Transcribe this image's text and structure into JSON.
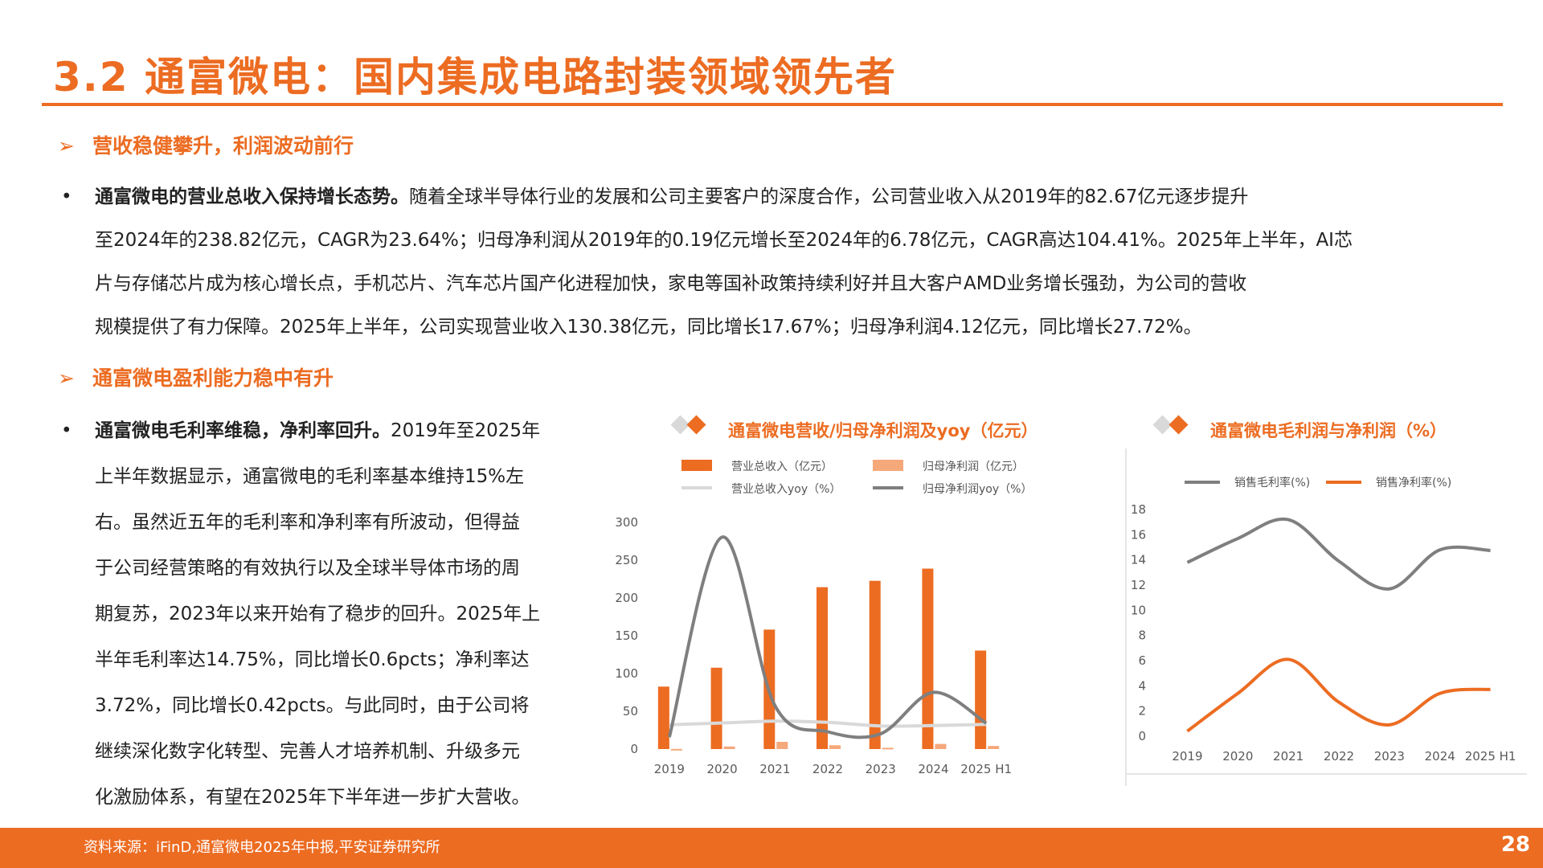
{
  "page": {
    "title": "3.2 通富微电：国内集成电路封装领域领先者",
    "page_number": "28",
    "source": "资料来源：iFinD,通富微电2025年中报,平安证券研究所"
  },
  "sections": [
    {
      "arrow": "➢",
      "heading": "营收稳健攀升，利润波动前行"
    },
    {
      "arrow": "➢",
      "heading": "通富微电盈利能力稳中有升"
    }
  ],
  "paragraph1": {
    "bullet": "•",
    "bold": "通富微电的营业总收入保持增长态势。",
    "line1": "随着全球半导体行业的发展和公司主要客户的深度合作，公司营业收入从2019年的82.67亿元逐步提升",
    "line2": "至2024年的238.82亿元，CAGR为23.64%；归母净利润从2019年的0.19亿元增长至2024年的6.78亿元，CAGR高达104.41%。2025年上半年，AI芯",
    "line3": "片与存储芯片成为核心增长点，手机芯片、汽车芯片国产化进程加快，家电等国补政策持续利好并且大客户AMD业务增长强劲，为公司的营收",
    "line4": "规模提供了有力保障。2025年上半年，公司实现营业收入130.38亿元，同比增长17.67%；归母净利润4.12亿元，同比增长27.72%。"
  },
  "paragraph2": {
    "bullet": "•",
    "bold": "通富微电毛利率维稳，净利率回升。",
    "line1": "2019年至2025年",
    "line2": "上半年数据显示，通富微电的毛利率基本维持15%左",
    "line3": "右。虽然近五年的毛利率和净利率有所波动，但得益",
    "line4": "于公司经营策略的有效执行以及全球半导体市场的周",
    "line5": "期复苏，2023年以来开始有了稳步的回升。2025年上",
    "line6": "半年毛利率达14.75%，同比增长0.6pcts；净利率达",
    "line7": "3.72%，同比增长0.42pcts。与此同时，由于公司将",
    "line8": "继续深化数字化转型、完善人才培养机制、升级多元",
    "line9": "化激励体系，有望在2025年下半年进一步扩大营收。"
  },
  "colors": {
    "accent": "#ec6c22",
    "light_orange": "#f5a87a",
    "gray": "#7f7f7f",
    "light_gray": "#d9d9d9"
  },
  "chart_data": [
    {
      "type": "bar",
      "title": "通富微电营收/归母净利润及yoy（亿元）",
      "categories": [
        "2019",
        "2020",
        "2021",
        "2022",
        "2023",
        "2024",
        "2025 H1"
      ],
      "series": [
        {
          "name": "营业总收入（亿元）",
          "axis": "left",
          "kind": "bar",
          "values": [
            82.67,
            107.69,
            158.12,
            214.29,
            222.69,
            238.82,
            130.38
          ]
        },
        {
          "name": "归母净利润（亿元）",
          "axis": "left",
          "kind": "bar",
          "values": [
            0.19,
            3.38,
            9.57,
            5.02,
            1.69,
            6.78,
            4.12
          ]
        },
        {
          "name": "营业总收入yoy（%）",
          "axis": "right",
          "kind": "line",
          "values": [
            14.5,
            30.3,
            46.8,
            35.5,
            3.9,
            7.2,
            17.7
          ]
        },
        {
          "name": "归母净利润yoy（%）",
          "axis": "right",
          "kind": "line",
          "values": [
            -95,
            1670,
            183,
            -47.5,
            -66.2,
            300,
            27.7
          ]
        }
      ],
      "y_left": {
        "min": 0,
        "max": 300,
        "ticks": [
          "0",
          "50",
          "100",
          "150",
          "200",
          "250",
          "300"
        ]
      },
      "y_right": {
        "min": -200,
        "max": 1800,
        "ticks": [
          "-200",
          "0",
          "200",
          "400",
          "600",
          "800",
          "1000",
          "1200",
          "1400",
          "1600",
          "1800"
        ]
      },
      "legend_placement": "top"
    },
    {
      "type": "line",
      "title": "通富微电毛利润与净利润（%）",
      "categories": [
        "2019",
        "2020",
        "2021",
        "2022",
        "2023",
        "2024",
        "2025 H1"
      ],
      "series": [
        {
          "name": "销售毛利率(%)",
          "values": [
            13.8,
            15.7,
            17.2,
            13.9,
            11.7,
            14.8,
            14.75
          ]
        },
        {
          "name": "销售净利率(%)",
          "values": [
            0.4,
            3.4,
            6.1,
            2.7,
            0.9,
            3.4,
            3.72
          ]
        }
      ],
      "y": {
        "min": 0,
        "max": 18,
        "ticks": [
          "0",
          "2",
          "4",
          "6",
          "8",
          "10",
          "12",
          "14",
          "16",
          "18"
        ]
      },
      "legend_placement": "top"
    }
  ]
}
